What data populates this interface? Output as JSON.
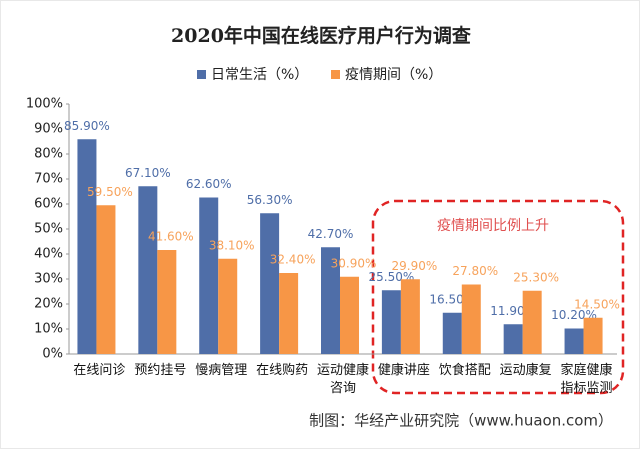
{
  "chart_data": {
    "type": "bar",
    "title": "2020年中国在线医疗用户行为调查",
    "categories": [
      "在线问诊",
      "预约挂号",
      "慢病管理",
      "在线购药",
      "运动健康\n咨询",
      "健康讲座",
      "饮食搭配",
      "运动康复",
      "家庭健康\n指标监测"
    ],
    "series": [
      {
        "name": "日常生活（%）",
        "color": "#4f6ea8",
        "values": [
          85.9,
          67.1,
          62.6,
          56.3,
          42.7,
          25.5,
          16.5,
          11.9,
          10.2
        ],
        "value_labels": [
          "85.90%",
          "67.10%",
          "62.60%",
          "56.30%",
          "42.70%",
          "25.50%",
          "16.50%",
          "11.90%",
          "10.20%"
        ]
      },
      {
        "name": "疫情期间（%）",
        "color": "#f79646",
        "values": [
          59.5,
          41.6,
          38.1,
          32.4,
          30.9,
          29.9,
          27.8,
          25.3,
          14.5
        ],
        "value_labels": [
          "59.50%",
          "41.60%",
          "38.10%",
          "32.40%",
          "30.90%",
          "29.90%",
          "27.80%",
          "25.30%",
          "14.50%"
        ]
      }
    ],
    "ylim": [
      0,
      100
    ],
    "yticks": [
      {
        "value": 0,
        "label": "0%"
      },
      {
        "value": 10,
        "label": "10%"
      },
      {
        "value": 20,
        "label": "20%"
      },
      {
        "value": 30,
        "label": "30%"
      },
      {
        "value": 40,
        "label": "40%"
      },
      {
        "value": 50,
        "label": "50%"
      },
      {
        "value": 60,
        "label": "60%"
      },
      {
        "value": 70,
        "label": "70%"
      },
      {
        "value": 80,
        "label": "80%"
      },
      {
        "value": 90,
        "label": "90%"
      },
      {
        "value": 100,
        "label": "100%"
      }
    ],
    "annotation": "疫情期间比例上升",
    "source": "制图：华经产业研究院（www.huaon.com）"
  }
}
